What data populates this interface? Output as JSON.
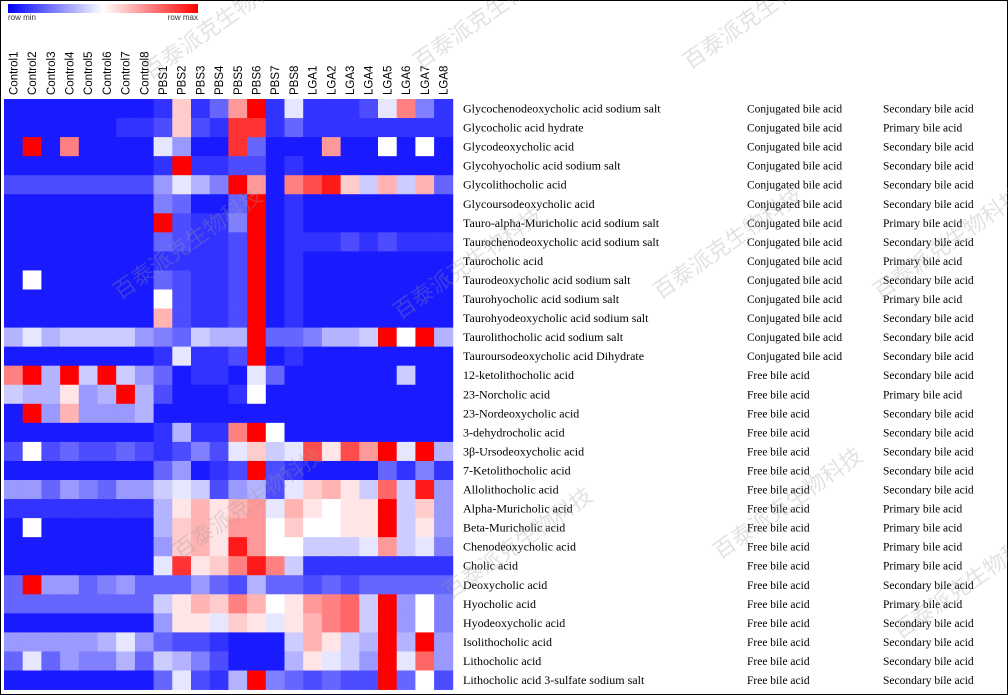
{
  "chart_data": {
    "type": "heatmap",
    "title": "",
    "legend": {
      "min_label": "row min",
      "max_label": "row max",
      "colors": {
        "min": "#0000ff",
        "mid": "#ffffff",
        "max": "#ff0000"
      }
    },
    "watermark": "百泰派克生物科技",
    "columns": [
      "Control1",
      "Control2",
      "Control3",
      "Control4",
      "Control5",
      "Control6",
      "Control7",
      "Control8",
      "PBS1",
      "PBS2",
      "PBS3",
      "PBS4",
      "PBS5",
      "PBS6",
      "PBS7",
      "PBS8",
      "LGA1",
      "LGA2",
      "LGA3",
      "LGA4",
      "LGA5",
      "LGA6",
      "LGA7",
      "LGA8"
    ],
    "rows": [
      {
        "name": "Glycochenodeoxycholic acid sodium salt",
        "category": "Conjugated bile acid",
        "class": "Secondary bile acid",
        "values": [
          0.05,
          0.05,
          0.05,
          0.05,
          0.05,
          0.05,
          0.05,
          0.05,
          0.1,
          0.6,
          0.1,
          0.2,
          0.7,
          1.0,
          0.1,
          0.45,
          0.1,
          0.1,
          0.1,
          0.15,
          0.45,
          0.75,
          0.25,
          0.1
        ]
      },
      {
        "name": "Glycocholic acid hydrate",
        "category": "Conjugated bile acid",
        "class": "Primary bile acid",
        "values": [
          0.05,
          0.05,
          0.05,
          0.05,
          0.05,
          0.05,
          0.1,
          0.1,
          0.15,
          0.6,
          0.15,
          0.1,
          0.9,
          0.9,
          0.1,
          0.2,
          0.1,
          0.1,
          0.1,
          0.1,
          0.1,
          0.1,
          0.1,
          0.1
        ]
      },
      {
        "name": "Glycodeoxycholic acid",
        "category": "Conjugated bile acid",
        "class": "Secondary bile acid",
        "values": [
          0.05,
          1.0,
          0.05,
          0.75,
          0.05,
          0.05,
          0.05,
          0.05,
          0.45,
          0.3,
          0.05,
          0.05,
          0.9,
          0.2,
          0.05,
          0.05,
          0.05,
          0.7,
          0.05,
          0.05,
          0.5,
          0.05,
          0.5,
          0.05
        ]
      },
      {
        "name": "Glycohyocholic acid sodium salt",
        "category": "Conjugated bile acid",
        "class": "Secondary bile acid",
        "values": [
          0.05,
          0.05,
          0.05,
          0.05,
          0.05,
          0.05,
          0.05,
          0.05,
          0.1,
          1.0,
          0.1,
          0.1,
          0.15,
          0.15,
          0.05,
          0.1,
          0.05,
          0.05,
          0.05,
          0.05,
          0.05,
          0.05,
          0.05,
          0.05
        ]
      },
      {
        "name": "Glycolithocholic acid",
        "category": "Conjugated bile acid",
        "class": "Secondary bile acid",
        "values": [
          0.15,
          0.15,
          0.15,
          0.15,
          0.15,
          0.15,
          0.15,
          0.15,
          0.3,
          0.45,
          0.35,
          0.25,
          1.0,
          0.7,
          0.05,
          0.75,
          0.85,
          0.95,
          0.6,
          0.4,
          0.65,
          0.4,
          0.65,
          0.2
        ]
      },
      {
        "name": "Glycoursodeoxycholic acid",
        "category": "Conjugated bile acid",
        "class": "Secondary bile acid",
        "values": [
          0.05,
          0.05,
          0.05,
          0.05,
          0.05,
          0.05,
          0.05,
          0.05,
          0.25,
          0.2,
          0.05,
          0.05,
          0.2,
          1.0,
          0.05,
          0.1,
          0.05,
          0.05,
          0.05,
          0.05,
          0.05,
          0.05,
          0.05,
          0.05
        ]
      },
      {
        "name": "Tauro-alpha-Muricholic acid sodium salt",
        "category": "Conjugated bile acid",
        "class": "Primary bile acid",
        "values": [
          0.05,
          0.05,
          0.05,
          0.05,
          0.05,
          0.05,
          0.05,
          0.05,
          1.0,
          0.15,
          0.1,
          0.1,
          0.25,
          1.0,
          0.05,
          0.1,
          0.05,
          0.05,
          0.05,
          0.05,
          0.05,
          0.05,
          0.05,
          0.05
        ]
      },
      {
        "name": "Taurochenodeoxycholic acid sodium salt",
        "category": "Conjugated bile acid",
        "class": "Secondary bile acid",
        "values": [
          0.05,
          0.05,
          0.05,
          0.05,
          0.05,
          0.05,
          0.05,
          0.05,
          0.2,
          0.15,
          0.1,
          0.1,
          0.15,
          1.0,
          0.05,
          0.1,
          0.1,
          0.1,
          0.15,
          0.1,
          0.15,
          0.1,
          0.1,
          0.1
        ]
      },
      {
        "name": "Taurocholic acid",
        "category": "Conjugated bile acid",
        "class": "Primary bile acid",
        "values": [
          0.05,
          0.05,
          0.05,
          0.05,
          0.05,
          0.05,
          0.05,
          0.05,
          0.1,
          0.1,
          0.1,
          0.1,
          0.15,
          1.0,
          0.05,
          0.1,
          0.05,
          0.05,
          0.05,
          0.05,
          0.05,
          0.05,
          0.05,
          0.05
        ]
      },
      {
        "name": "Taurodeoxycholic acid sodium salt",
        "category": "Conjugated bile acid",
        "class": "Secondary bile acid",
        "values": [
          0.05,
          0.5,
          0.05,
          0.05,
          0.05,
          0.05,
          0.05,
          0.05,
          0.2,
          0.15,
          0.1,
          0.1,
          0.15,
          1.0,
          0.05,
          0.1,
          0.05,
          0.05,
          0.05,
          0.05,
          0.05,
          0.05,
          0.05,
          0.05
        ]
      },
      {
        "name": "Taurohyocholic acid sodium salt",
        "category": "Conjugated bile acid",
        "class": "Primary bile acid",
        "values": [
          0.05,
          0.05,
          0.05,
          0.05,
          0.05,
          0.05,
          0.05,
          0.05,
          0.5,
          0.15,
          0.1,
          0.1,
          0.15,
          1.0,
          0.05,
          0.1,
          0.05,
          0.05,
          0.05,
          0.05,
          0.05,
          0.05,
          0.05,
          0.05
        ]
      },
      {
        "name": "Taurohyodeoxycholic acid sodium salt",
        "category": "Conjugated bile acid",
        "class": "Secondary bile acid",
        "values": [
          0.05,
          0.05,
          0.05,
          0.05,
          0.05,
          0.05,
          0.05,
          0.05,
          0.65,
          0.15,
          0.1,
          0.1,
          0.15,
          1.0,
          0.05,
          0.1,
          0.05,
          0.05,
          0.05,
          0.05,
          0.05,
          0.05,
          0.05,
          0.05
        ]
      },
      {
        "name": "Taurolithocholic acid sodium salt",
        "category": "Conjugated bile acid",
        "class": "Secondary bile acid",
        "values": [
          0.35,
          0.45,
          0.35,
          0.4,
          0.4,
          0.4,
          0.4,
          0.3,
          0.25,
          0.2,
          0.4,
          0.35,
          0.35,
          1.0,
          0.2,
          0.2,
          0.25,
          0.35,
          0.35,
          0.4,
          1.0,
          0.5,
          1.0,
          0.35
        ]
      },
      {
        "name": "Tauroursodeoxycholic acid Dihydrate",
        "category": "Conjugated bile acid",
        "class": "Secondary bile acid",
        "values": [
          0.05,
          0.05,
          0.05,
          0.05,
          0.05,
          0.05,
          0.05,
          0.05,
          0.1,
          0.45,
          0.1,
          0.1,
          0.15,
          1.0,
          0.05,
          0.1,
          0.05,
          0.05,
          0.05,
          0.05,
          0.05,
          0.05,
          0.05,
          0.05
        ]
      },
      {
        "name": "12-ketolithocholic acid",
        "category": "Free bile acid",
        "class": "Secondary bile acid",
        "values": [
          0.75,
          1.0,
          0.35,
          1.0,
          0.4,
          1.0,
          0.4,
          0.3,
          0.2,
          0.05,
          0.1,
          0.1,
          0.05,
          0.45,
          0.2,
          0.05,
          0.05,
          0.05,
          0.05,
          0.05,
          0.05,
          0.4,
          0.05,
          0.05
        ]
      },
      {
        "name": "23-Norcholic acid",
        "category": "Free bile acid",
        "class": "Primary bile acid",
        "values": [
          0.4,
          0.35,
          0.35,
          0.55,
          0.3,
          0.35,
          1.0,
          0.35,
          0.15,
          0.05,
          0.05,
          0.05,
          0.1,
          0.5,
          0.05,
          0.05,
          0.05,
          0.05,
          0.05,
          0.05,
          0.05,
          0.05,
          0.05,
          0.05
        ]
      },
      {
        "name": "23-Nordeoxycholic acid",
        "category": "Free bile acid",
        "class": "Secondary bile acid",
        "values": [
          0.05,
          1.0,
          0.3,
          0.65,
          0.3,
          0.3,
          0.3,
          0.35,
          0.05,
          0.05,
          0.05,
          0.05,
          0.05,
          0.05,
          0.05,
          0.05,
          0.05,
          0.05,
          0.05,
          0.05,
          0.05,
          0.05,
          0.05,
          0.05
        ]
      },
      {
        "name": "3-dehydrocholic acid",
        "category": "Free bile acid",
        "class": "Secondary bile acid",
        "values": [
          0.05,
          0.05,
          0.05,
          0.05,
          0.05,
          0.05,
          0.05,
          0.05,
          0.1,
          0.35,
          0.1,
          0.1,
          0.75,
          1.0,
          0.5,
          0.05,
          0.05,
          0.05,
          0.05,
          0.05,
          0.05,
          0.05,
          0.05,
          0.05
        ]
      },
      {
        "name": "3β-Ursodeoxycholic acid",
        "category": "Free bile acid",
        "class": "Secondary bile acid",
        "values": [
          0.15,
          0.5,
          0.15,
          0.2,
          0.15,
          0.15,
          0.2,
          0.15,
          0.1,
          0.15,
          0.25,
          0.15,
          0.45,
          0.6,
          0.4,
          0.45,
          0.85,
          0.55,
          0.85,
          0.7,
          1.0,
          0.45,
          1.0,
          0.35
        ]
      },
      {
        "name": "7-Ketolithocholic acid",
        "category": "Free bile acid",
        "class": "Secondary bile acid",
        "values": [
          0.05,
          0.05,
          0.05,
          0.05,
          0.05,
          0.05,
          0.05,
          0.05,
          0.2,
          0.3,
          0.05,
          0.1,
          0.15,
          1.0,
          0.15,
          0.1,
          0.05,
          0.05,
          0.05,
          0.05,
          0.2,
          0.1,
          0.25,
          0.1
        ]
      },
      {
        "name": "Allolithocholic acid",
        "category": "Free bile acid",
        "class": "Secondary bile acid",
        "values": [
          0.3,
          0.3,
          0.2,
          0.3,
          0.25,
          0.2,
          0.3,
          0.3,
          0.4,
          0.45,
          0.4,
          0.15,
          0.3,
          0.35,
          0.15,
          0.45,
          0.6,
          0.65,
          0.55,
          0.4,
          0.8,
          0.4,
          0.95,
          0.3
        ]
      },
      {
        "name": "Alpha-Muricholic acid",
        "category": "Free bile acid",
        "class": "Primary bile acid",
        "values": [
          0.1,
          0.1,
          0.1,
          0.1,
          0.1,
          0.1,
          0.1,
          0.1,
          0.35,
          0.55,
          0.65,
          0.55,
          0.65,
          0.7,
          0.45,
          0.65,
          0.55,
          0.5,
          0.55,
          0.55,
          1.0,
          0.4,
          0.6,
          0.3
        ]
      },
      {
        "name": "Beta-Muricholic acid",
        "category": "Free bile acid",
        "class": "Primary bile acid",
        "values": [
          0.05,
          0.5,
          0.05,
          0.05,
          0.05,
          0.05,
          0.05,
          0.05,
          0.35,
          0.6,
          0.65,
          0.55,
          0.7,
          0.7,
          0.5,
          0.6,
          0.5,
          0.5,
          0.55,
          0.55,
          1.0,
          0.4,
          0.55,
          0.3
        ]
      },
      {
        "name": "Chenodeoxycholic acid",
        "category": "Free bile acid",
        "class": "Primary bile acid",
        "values": [
          0.05,
          0.05,
          0.05,
          0.05,
          0.05,
          0.05,
          0.05,
          0.05,
          0.3,
          0.6,
          0.65,
          0.55,
          0.95,
          0.7,
          0.5,
          0.5,
          0.4,
          0.4,
          0.4,
          0.45,
          0.7,
          0.4,
          0.45,
          0.25
        ]
      },
      {
        "name": "Cholic acid",
        "category": "Free bile acid",
        "class": "Primary bile acid",
        "values": [
          0.05,
          0.05,
          0.05,
          0.05,
          0.05,
          0.05,
          0.05,
          0.05,
          0.45,
          0.9,
          0.55,
          0.6,
          0.75,
          0.95,
          0.75,
          0.4,
          0.1,
          0.1,
          0.1,
          0.1,
          0.1,
          0.1,
          0.1,
          0.1
        ]
      },
      {
        "name": "Deoxycholic acid",
        "category": "Free bile acid",
        "class": "Secondary bile acid",
        "values": [
          0.2,
          1.0,
          0.3,
          0.3,
          0.2,
          0.25,
          0.3,
          0.2,
          0.2,
          0.2,
          0.3,
          0.2,
          0.15,
          0.35,
          0.2,
          0.2,
          0.15,
          0.2,
          0.15,
          0.2,
          0.2,
          0.2,
          0.2,
          0.2
        ]
      },
      {
        "name": "Hyocholic acid",
        "category": "Free bile acid",
        "class": "Primary bile acid",
        "values": [
          0.2,
          0.2,
          0.2,
          0.2,
          0.2,
          0.2,
          0.2,
          0.2,
          0.4,
          0.55,
          0.65,
          0.6,
          0.75,
          0.65,
          0.5,
          0.55,
          0.7,
          0.75,
          0.8,
          0.4,
          1.0,
          0.3,
          0.5,
          0.25
        ]
      },
      {
        "name": "Hyodeoxycholic acid",
        "category": "Free bile acid",
        "class": "Secondary bile acid",
        "values": [
          0.05,
          0.05,
          0.05,
          0.05,
          0.05,
          0.05,
          0.05,
          0.05,
          0.3,
          0.55,
          0.55,
          0.45,
          0.6,
          0.55,
          0.45,
          0.55,
          0.65,
          0.75,
          0.8,
          0.4,
          1.0,
          0.3,
          0.5,
          0.25
        ]
      },
      {
        "name": "Isolithocholic acid",
        "category": "Free bile acid",
        "class": "Secondary bile acid",
        "values": [
          0.3,
          0.3,
          0.3,
          0.3,
          0.3,
          0.35,
          0.45,
          0.3,
          0.2,
          0.15,
          0.15,
          0.1,
          0.05,
          0.05,
          0.05,
          0.4,
          0.65,
          0.55,
          0.4,
          0.35,
          1.0,
          0.35,
          1.0,
          0.3
        ]
      },
      {
        "name": "Lithocholic acid",
        "category": "Free bile acid",
        "class": "Secondary bile acid",
        "values": [
          0.2,
          0.45,
          0.2,
          0.3,
          0.25,
          0.25,
          0.35,
          0.2,
          0.4,
          0.35,
          0.25,
          0.15,
          0.05,
          0.05,
          0.05,
          0.35,
          0.55,
          0.45,
          0.4,
          0.3,
          1.0,
          0.45,
          0.8,
          0.3
        ]
      },
      {
        "name": "Lithocholic acid 3-sulfate sodium salt",
        "category": "Free bile acid",
        "class": "Secondary bile acid",
        "values": [
          0.05,
          0.05,
          0.05,
          0.05,
          0.05,
          0.05,
          0.05,
          0.05,
          0.2,
          0.45,
          0.15,
          0.1,
          0.35,
          1.0,
          0.25,
          0.2,
          0.15,
          0.2,
          0.15,
          0.15,
          1.0,
          0.2,
          0.5,
          0.15
        ]
      }
    ]
  }
}
